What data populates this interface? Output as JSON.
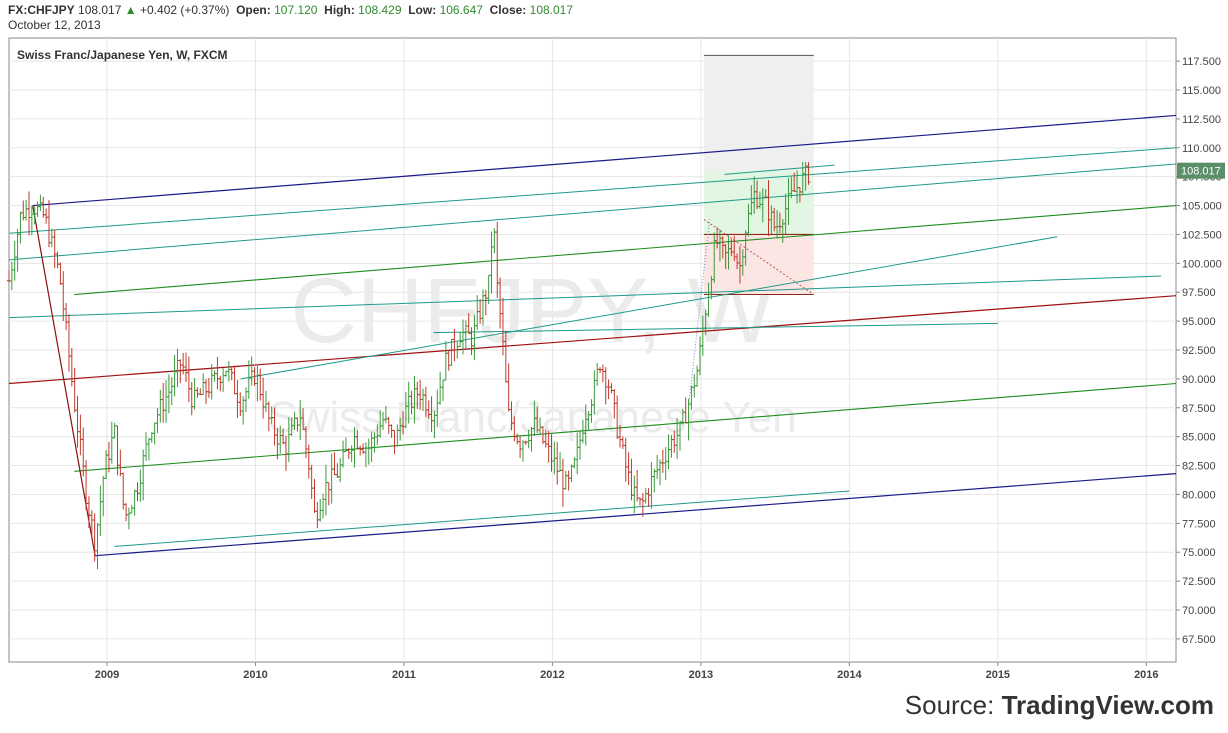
{
  "header": {
    "symbol": "FX:CHFJPY",
    "last": "108.017",
    "change": "+0.402 (+0.37%)",
    "open_label": "Open:",
    "open": "107.120",
    "high_label": "High:",
    "high": "108.429",
    "low_label": "Low:",
    "low": "106.647",
    "close_label": "Close:",
    "close": "108.017",
    "date": "October 12, 2013"
  },
  "source": {
    "prefix": "Source: ",
    "brand": "TradingView.com"
  },
  "chart_data": {
    "type": "candlestick",
    "title": "Swiss Franc/Japanese Yen, W, FXCM",
    "watermark_symbol": "CHFJPY, W",
    "watermark_name": "Swiss Franc/Japanese Yen",
    "ylim": [
      65.5,
      119.5
    ],
    "xlim": [
      2008.34,
      2016.2
    ],
    "y_ticks": [
      "67.500",
      "70.000",
      "72.500",
      "75.000",
      "77.500",
      "80.000",
      "82.500",
      "85.000",
      "87.500",
      "90.000",
      "92.500",
      "95.000",
      "97.500",
      "100.000",
      "102.500",
      "105.000",
      "107.500",
      "110.000",
      "112.500",
      "115.000",
      "117.500"
    ],
    "x_ticks": [
      "2009",
      "2010",
      "2011",
      "2012",
      "2013",
      "2014",
      "2015",
      "2016"
    ],
    "last_price_label": "108.017",
    "last_price": 108.017,
    "colors": {
      "up": "#3a9a3a",
      "down": "#c0392b",
      "axis": "#555555",
      "grid": "#e6e6e6"
    },
    "price_path": [
      [
        2008.34,
        98.5
      ],
      [
        2008.42,
        104.3
      ],
      [
        2008.5,
        105.0
      ],
      [
        2008.58,
        104.0
      ],
      [
        2008.68,
        99.0
      ],
      [
        2008.78,
        88.0
      ],
      [
        2008.86,
        80.0
      ],
      [
        2008.92,
        75.8
      ],
      [
        2008.98,
        82.0
      ],
      [
        2009.05,
        85.5
      ],
      [
        2009.12,
        78.0
      ],
      [
        2009.2,
        80.5
      ],
      [
        2009.3,
        86.0
      ],
      [
        2009.42,
        89.0
      ],
      [
        2009.5,
        91.5
      ],
      [
        2009.58,
        88.0
      ],
      [
        2009.7,
        89.5
      ],
      [
        2009.8,
        91.0
      ],
      [
        2009.9,
        88.0
      ],
      [
        2010.0,
        90.5
      ],
      [
        2010.1,
        86.0
      ],
      [
        2010.2,
        84.0
      ],
      [
        2010.3,
        87.0
      ],
      [
        2010.36,
        82.5
      ],
      [
        2010.4,
        78.0
      ],
      [
        2010.46,
        80.5
      ],
      [
        2010.56,
        82.0
      ],
      [
        2010.66,
        85.0
      ],
      [
        2010.76,
        84.0
      ],
      [
        2010.86,
        86.5
      ],
      [
        2010.94,
        84.5
      ],
      [
        2011.0,
        87.0
      ],
      [
        2011.1,
        89.0
      ],
      [
        2011.2,
        87.0
      ],
      [
        2011.28,
        91.5
      ],
      [
        2011.38,
        94.0
      ],
      [
        2011.46,
        93.5
      ],
      [
        2011.54,
        97.0
      ],
      [
        2011.58,
        98.5
      ],
      [
        2011.6,
        105.0
      ],
      [
        2011.62,
        99.0
      ],
      [
        2011.66,
        94.0
      ],
      [
        2011.7,
        87.0
      ],
      [
        2011.78,
        84.5
      ],
      [
        2011.88,
        86.0
      ],
      [
        2011.96,
        84.0
      ],
      [
        2012.04,
        82.0
      ],
      [
        2012.1,
        80.5
      ],
      [
        2012.16,
        83.0
      ],
      [
        2012.22,
        87.0
      ],
      [
        2012.28,
        89.0
      ],
      [
        2012.32,
        91.5
      ],
      [
        2012.38,
        89.5
      ],
      [
        2012.44,
        85.5
      ],
      [
        2012.5,
        82.0
      ],
      [
        2012.56,
        79.5
      ],
      [
        2012.6,
        79.0
      ],
      [
        2012.66,
        81.0
      ],
      [
        2012.72,
        82.5
      ],
      [
        2012.8,
        84.5
      ],
      [
        2012.86,
        85.5
      ],
      [
        2012.92,
        88.0
      ],
      [
        2012.98,
        91.0
      ],
      [
        2013.02,
        95.0
      ],
      [
        2013.06,
        98.5
      ],
      [
        2013.1,
        102.0
      ],
      [
        2013.16,
        100.5
      ],
      [
        2013.22,
        101.5
      ],
      [
        2013.26,
        99.5
      ],
      [
        2013.3,
        103.0
      ],
      [
        2013.36,
        106.0
      ],
      [
        2013.44,
        105.0
      ],
      [
        2013.5,
        103.0
      ],
      [
        2013.56,
        104.5
      ],
      [
        2013.64,
        106.5
      ],
      [
        2013.7,
        107.5
      ],
      [
        2013.74,
        108.0
      ]
    ],
    "channels": {
      "outer_blue": [
        [
          2008.5,
          105.0
        ],
        [
          2016.2,
          112.8
        ],
        [
          2008.92,
          74.7
        ],
        [
          2016.2,
          81.8
        ]
      ],
      "red_mid": [
        [
          2008.34,
          89.6
        ],
        [
          2016.2,
          97.2
        ]
      ],
      "green_mid_upper": [
        [
          2008.78,
          97.3
        ],
        [
          2016.2,
          105.0
        ]
      ],
      "green_mid_lower": [
        [
          2008.78,
          82.0
        ],
        [
          2016.2,
          89.6
        ]
      ],
      "teal_lines": [
        [
          [
            2008.34,
            102.6
          ],
          [
            2016.2,
            110.0
          ]
        ],
        [
          [
            2008.34,
            100.3
          ],
          [
            2016.2,
            108.6
          ]
        ],
        [
          [
            2008.34,
            95.3
          ],
          [
            2016.1,
            98.9
          ]
        ],
        [
          [
            2011.2,
            94.0
          ],
          [
            2015.0,
            94.8
          ]
        ],
        [
          [
            2009.9,
            90.0
          ],
          [
            2015.4,
            102.3
          ]
        ],
        [
          [
            2009.05,
            75.5
          ],
          [
            2014.0,
            80.3
          ]
        ],
        [
          [
            2013.16,
            107.7
          ],
          [
            2013.9,
            108.5
          ]
        ]
      ],
      "steep_red": [
        [
          2008.5,
          105.0
        ],
        [
          2008.92,
          74.7
        ]
      ]
    },
    "projection": {
      "box_x": [
        2013.02,
        2013.76
      ],
      "top_line": 118.0,
      "green_zone": [
        102.5,
        108.0
      ],
      "red_zone": [
        97.3,
        102.5
      ]
    }
  }
}
